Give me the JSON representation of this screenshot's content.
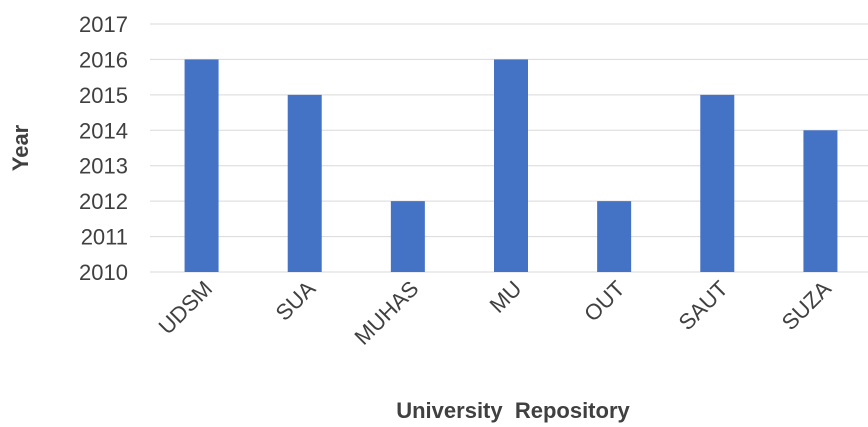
{
  "chart_data": {
    "type": "bar",
    "title": "",
    "xlabel": "University  Repository",
    "ylabel": "Year",
    "categories": [
      "UDSM",
      "SUA",
      "MUHAS",
      "MU",
      "OUT",
      "SAUT",
      "SUZA"
    ],
    "values": [
      2016,
      2015,
      2012,
      2016,
      2012,
      2015,
      2014
    ],
    "ylim": [
      2010,
      2017
    ],
    "yticks": [
      "2010",
      "2011",
      "2012",
      "2013",
      "2014",
      "2015",
      "2016",
      "2017"
    ],
    "grid": true,
    "legend": "none",
    "bar_color": "#4472C4",
    "grid_color": "#D9D9D9",
    "text_color": "#404040"
  }
}
